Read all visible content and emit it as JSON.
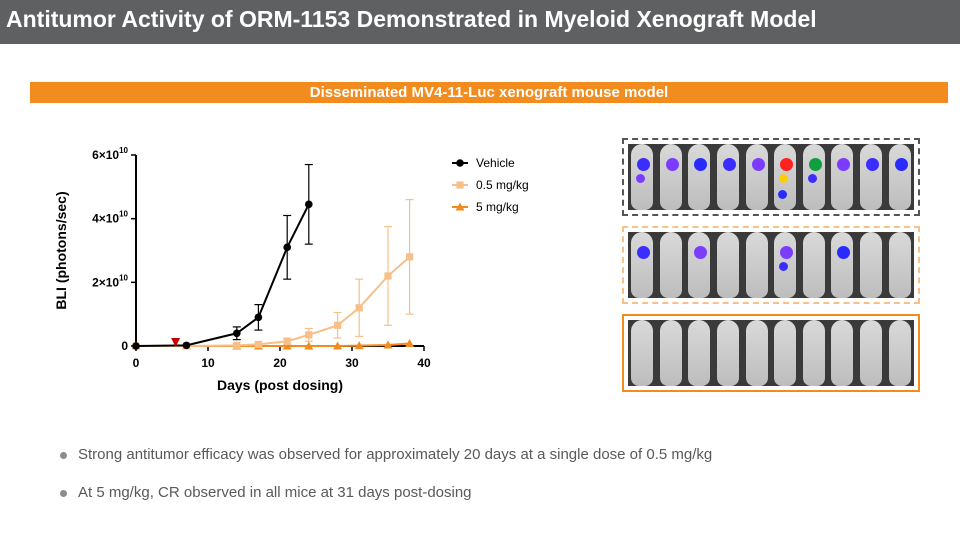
{
  "header": {
    "title": "Antitumor Activity of ORM-1153 Demonstrated in Myeloid Xenograft Model"
  },
  "banner": {
    "text": "Disseminated MV4-11-Luc xenograft mouse model"
  },
  "colors": {
    "vehicle": "#000000",
    "low_dose": "#f7c08a",
    "high_dose": "#f28c1e",
    "marker": "#c00000",
    "banner": "#f28c1e",
    "title_bar": "#5f6062"
  },
  "chart_data": {
    "type": "line",
    "xlabel": "Days (post dosing)",
    "ylabel": "BLI (photons/sec)",
    "xlim": [
      0,
      40
    ],
    "ylim": [
      0,
      60000000000.0
    ],
    "x_ticks": [
      "0",
      "10",
      "20",
      "30",
      "40"
    ],
    "y_ticks": [
      {
        "mant": "0",
        "exp": ""
      },
      {
        "mant": "2×10",
        "exp": "10"
      },
      {
        "mant": "4×10",
        "exp": "10"
      },
      {
        "mant": "6×10",
        "exp": "10"
      }
    ],
    "legend_position": "top-right",
    "dosing_marker_day": 5.5,
    "series": [
      {
        "name": "Vehicle",
        "marker": "circle",
        "color": "#000000",
        "x": [
          0,
          7,
          14,
          17,
          21,
          24
        ],
        "y": [
          0,
          200000000.0,
          4000000000.0,
          9000000000.0,
          31000000000.0,
          44500000000.0
        ],
        "err": [
          0,
          0,
          2000000000.0,
          4000000000.0,
          10000000000.0,
          12500000000.0
        ]
      },
      {
        "name": "0.5 mg/kg",
        "marker": "square",
        "color": "#f7c08a",
        "x": [
          0,
          7,
          14,
          17,
          21,
          24,
          28,
          31,
          35,
          38
        ],
        "y": [
          0,
          0,
          200000000.0,
          500000000.0,
          1500000000.0,
          3500000000.0,
          6500000000.0,
          12000000000.0,
          22000000000.0,
          28000000000.0
        ],
        "err": [
          0,
          0,
          0,
          300000000.0,
          1000000000.0,
          2000000000.0,
          4000000000.0,
          9000000000.0,
          15500000000.0,
          18000000000.0
        ]
      },
      {
        "name": "5 mg/kg",
        "marker": "triangle",
        "color": "#f28c1e",
        "x": [
          0,
          7,
          14,
          17,
          21,
          24,
          28,
          31,
          35,
          38
        ],
        "y": [
          0,
          0,
          0,
          0,
          0,
          0,
          0,
          100000000.0,
          300000000.0,
          800000000.0
        ],
        "err": [
          0,
          0,
          0,
          0,
          0,
          0,
          0,
          0,
          0,
          0
        ]
      }
    ]
  },
  "image_panels": [
    {
      "group": "Vehicle",
      "border": "#555555",
      "style": "dashed"
    },
    {
      "group": "0.5 mg/kg",
      "border": "#f7c08a",
      "style": "dashed"
    },
    {
      "group": "5 mg/kg",
      "border": "#f28c1e",
      "style": "solid"
    }
  ],
  "bullets": [
    "Strong antitumor efficacy was observed for approximately 20 days at a single dose of 0.5 mg/kg",
    "At 5 mg/kg, CR observed in all mice at 31 days post-dosing"
  ]
}
